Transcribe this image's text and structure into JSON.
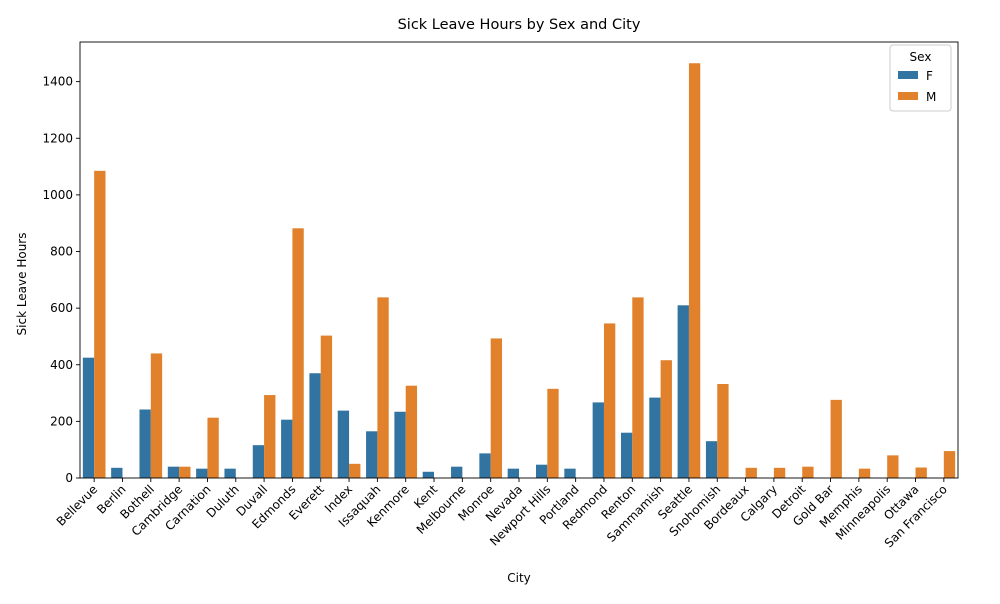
{
  "chart_data": {
    "type": "bar",
    "title": "Sick Leave Hours by Sex and City",
    "xlabel": "City",
    "ylabel": "Sick Leave Hours",
    "ylim": [
      0,
      1540
    ],
    "yticks": [
      0,
      200,
      400,
      600,
      800,
      1000,
      1200,
      1400
    ],
    "grid": false,
    "legend": {
      "title": "Sex",
      "placement": "top-right"
    },
    "categories": [
      "Bellevue",
      "Berlin",
      "Bothell",
      "Cambridge",
      "Carnation",
      "Duluth",
      "Duvall",
      "Edmonds",
      "Everett",
      "Index",
      "Issaquah",
      "Kenmore",
      "Kent",
      "Melbourne",
      "Monroe",
      "Nevada",
      "Newport Hills",
      "Portland",
      "Redmond",
      "Renton",
      "Sammamish",
      "Seattle",
      "Snohomish",
      "Bordeaux",
      "Calgary",
      "Detroit",
      "Gold Bar",
      "Memphis",
      "Minneapolis",
      "Ottawa",
      "San Francisco"
    ],
    "series": [
      {
        "name": "F",
        "color": "#3274a1",
        "values": [
          425,
          36,
          242,
          40,
          33,
          33,
          116,
          206,
          370,
          238,
          165,
          234,
          22,
          40,
          87,
          33,
          47,
          33,
          267,
          160,
          284,
          610,
          130,
          null,
          null,
          null,
          null,
          null,
          null,
          null,
          null
        ]
      },
      {
        "name": "M",
        "color": "#e1812c",
        "values": [
          1085,
          null,
          440,
          40,
          213,
          null,
          293,
          882,
          503,
          50,
          638,
          326,
          null,
          null,
          493,
          null,
          315,
          null,
          546,
          638,
          416,
          1465,
          332,
          36,
          36,
          40,
          276,
          33,
          80,
          37,
          95
        ]
      }
    ]
  }
}
